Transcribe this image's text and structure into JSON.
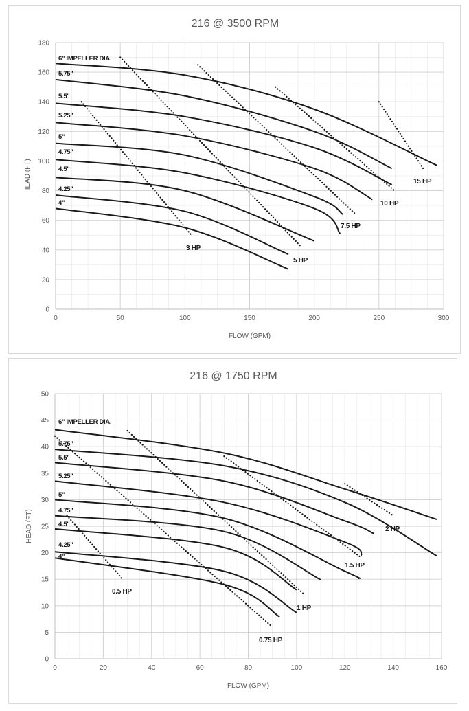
{
  "chart_data": [
    {
      "type": "line",
      "title": "216 @ 3500 RPM",
      "xlabel": "FLOW (GPM)",
      "ylabel": "HEAD (FT)",
      "xlim": [
        0,
        300
      ],
      "ylim": [
        0,
        180
      ],
      "xticks": [
        0,
        50,
        100,
        150,
        200,
        250,
        300
      ],
      "yticks": [
        0,
        20,
        40,
        60,
        80,
        100,
        120,
        140,
        160,
        180
      ],
      "grid": true,
      "series": [
        {
          "name": "6\" IMPELLER DIA.",
          "x": [
            0,
            100,
            200,
            295
          ],
          "y": [
            166,
            158,
            135,
            97
          ]
        },
        {
          "name": "5.75\"",
          "x": [
            0,
            100,
            200,
            260
          ],
          "y": [
            155,
            144,
            120,
            95
          ]
        },
        {
          "name": "5.5\"",
          "x": [
            0,
            100,
            200,
            260
          ],
          "y": [
            139,
            130,
            109,
            84
          ]
        },
        {
          "name": "5.25\"",
          "x": [
            0,
            100,
            200,
            245
          ],
          "y": [
            126,
            117,
            95,
            74
          ]
        },
        {
          "name": "5\"",
          "x": [
            0,
            100,
            200,
            222
          ],
          "y": [
            112,
            104,
            76,
            64
          ]
        },
        {
          "name": "4.75\"",
          "x": [
            0,
            100,
            200,
            220
          ],
          "y": [
            101,
            92,
            68,
            51
          ]
        },
        {
          "name": "4.5\"",
          "x": [
            0,
            100,
            200
          ],
          "y": [
            89,
            80,
            46
          ]
        },
        {
          "name": "4.25\"",
          "x": [
            0,
            100,
            180
          ],
          "y": [
            77,
            66,
            37
          ]
        },
        {
          "name": "4\"",
          "x": [
            0,
            100,
            180
          ],
          "y": [
            68,
            55,
            27
          ]
        }
      ],
      "hp_lines": [
        {
          "label": "3 HP",
          "x": [
            20,
            105
          ],
          "y": [
            140,
            50
          ]
        },
        {
          "label": "5 HP",
          "x": [
            50,
            190
          ],
          "y": [
            170,
            42
          ]
        },
        {
          "label": "7.5 HP",
          "x": [
            110,
            232
          ],
          "y": [
            165,
            64
          ]
        },
        {
          "label": "10 HP",
          "x": [
            170,
            262
          ],
          "y": [
            150,
            80
          ]
        },
        {
          "label": "15 HP",
          "x": [
            250,
            285
          ],
          "y": [
            140,
            94
          ]
        }
      ],
      "annotations": [
        "6\" IMPELLER DIA.",
        "5.75\"",
        "5.5\"",
        "5.25\"",
        "5\"",
        "4.75\"",
        "4.5\"",
        "4.25\"",
        "4\"",
        "3 HP",
        "5 HP",
        "7.5 HP",
        "10 HP",
        "15 HP"
      ]
    },
    {
      "type": "line",
      "title": "216 @ 1750 RPM",
      "xlabel": "FLOW (GPM)",
      "ylabel": "HEAD (FT)",
      "xlim": [
        0,
        160
      ],
      "ylim": [
        0,
        50
      ],
      "xticks": [
        0,
        20,
        40,
        60,
        80,
        100,
        120,
        140,
        160
      ],
      "yticks": [
        0,
        5,
        10,
        15,
        20,
        25,
        30,
        35,
        40,
        45,
        50
      ],
      "grid": true,
      "series": [
        {
          "name": "6\" IMPELLER DIA.",
          "x": [
            0,
            70,
            120,
            158
          ],
          "y": [
            43.2,
            38.8,
            32,
            26.3
          ]
        },
        {
          "name": "5.75\"",
          "x": [
            0,
            70,
            120,
            158
          ],
          "y": [
            39.5,
            36.4,
            29.5,
            19.4
          ]
        },
        {
          "name": "5.5\"",
          "x": [
            0,
            70,
            120,
            132
          ],
          "y": [
            37,
            33.5,
            26,
            23.6
          ]
        },
        {
          "name": "5.25\"",
          "x": [
            0,
            70,
            120,
            127
          ],
          "y": [
            33.5,
            29.5,
            22,
            19.5
          ]
        },
        {
          "name": "5\"",
          "x": [
            0,
            70,
            120,
            126
          ],
          "y": [
            30,
            26.5,
            16.5,
            15.1
          ]
        },
        {
          "name": "4.75\"",
          "x": [
            0,
            70,
            110
          ],
          "y": [
            27,
            24,
            14.9
          ]
        },
        {
          "name": "4.5\"",
          "x": [
            0,
            70,
            100
          ],
          "y": [
            24.5,
            21,
            13
          ]
        },
        {
          "name": "4.25\"",
          "x": [
            0,
            70,
            100
          ],
          "y": [
            20.2,
            16.5,
            8.7
          ]
        },
        {
          "name": "4\"",
          "x": [
            0,
            70,
            93
          ],
          "y": [
            19,
            14,
            7.9
          ]
        }
      ],
      "hp_lines": [
        {
          "label": "0.5 HP",
          "x": [
            5,
            28
          ],
          "y": [
            27,
            15
          ]
        },
        {
          "label": "0.75 HP",
          "x": [
            0,
            90
          ],
          "y": [
            42,
            6
          ]
        },
        {
          "label": "1 HP",
          "x": [
            30,
            103
          ],
          "y": [
            43,
            12.2
          ]
        },
        {
          "label": "1.5 HP",
          "x": [
            70,
            127
          ],
          "y": [
            38.2,
            19
          ]
        },
        {
          "label": "2 HP",
          "x": [
            120,
            140
          ],
          "y": [
            33,
            27
          ]
        }
      ],
      "annotations": [
        "6\" IMPELLER DIA.",
        "5.75\"",
        "5.5\"",
        "5.25\"",
        "5\"",
        "4.75\"",
        "4.5\"",
        "4.25\"",
        "4\"",
        "0.5 HP",
        "0.75 HP",
        "1 HP",
        "1.5 HP",
        "2 HP"
      ]
    }
  ]
}
